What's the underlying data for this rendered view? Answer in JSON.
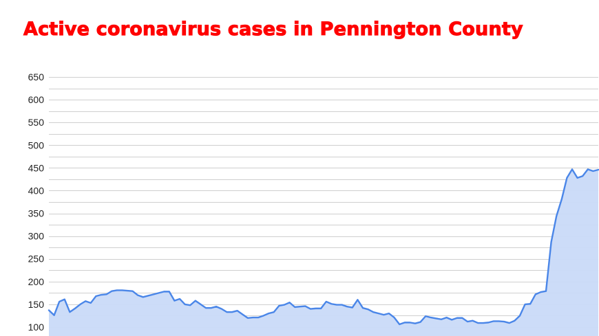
{
  "title": "Active coronavirus cases in Pennington County",
  "colors": {
    "title": "#ff0000",
    "line": "#4a86e8",
    "fill": "#c9daf8",
    "grid": "#cfcfcf"
  },
  "chart_data": {
    "type": "area",
    "title": "Active coronavirus cases in Pennington County",
    "xlabel": "",
    "ylabel": "",
    "ylim": [
      100,
      650
    ],
    "yticks": [
      100,
      150,
      200,
      250,
      300,
      350,
      400,
      450,
      500,
      550,
      600,
      650
    ],
    "grid": true,
    "legend": "none",
    "series": [
      {
        "values": [
          137,
          126,
          156,
          161,
          133,
          141,
          150,
          157,
          153,
          168,
          171,
          172,
          179,
          181,
          181,
          180,
          179,
          170,
          166,
          169,
          172,
          175,
          178,
          178,
          158,
          162,
          150,
          148,
          158,
          150,
          142,
          142,
          145,
          140,
          133,
          133,
          136,
          128,
          120,
          121,
          121,
          125,
          130,
          133,
          147,
          149,
          154,
          144,
          145,
          146,
          140,
          141,
          141,
          156,
          151,
          149,
          149,
          145,
          143,
          160,
          142,
          139,
          133,
          130,
          127,
          130,
          121,
          106,
          110,
          110,
          108,
          111,
          124,
          121,
          119,
          117,
          121,
          116,
          120,
          120,
          112,
          114,
          109,
          109,
          110,
          113,
          113,
          112,
          109,
          114,
          125,
          150,
          151,
          172,
          177,
          179,
          287,
          344,
          381,
          428,
          447,
          428,
          432,
          447,
          443,
          446
        ]
      }
    ]
  }
}
